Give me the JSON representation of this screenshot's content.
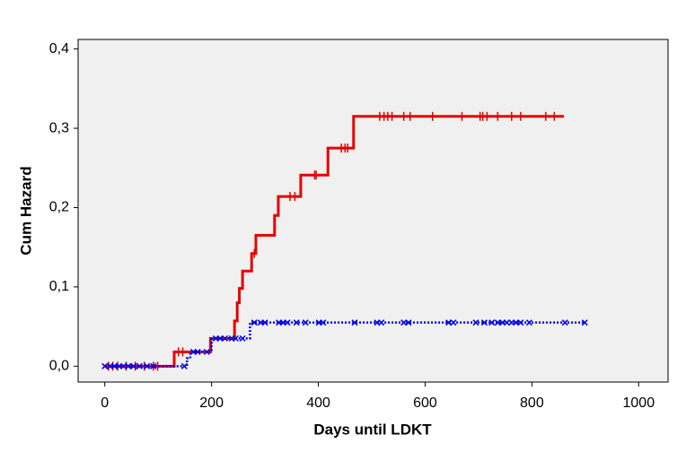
{
  "chart_data": {
    "type": "step",
    "x_label": "Days until LDKT",
    "y_label": "Cum Hazard",
    "xlim": [
      -50,
      1055
    ],
    "ylim": [
      -0.02,
      0.412
    ],
    "xticks": [
      0,
      200,
      400,
      600,
      800,
      1000
    ],
    "yticks": [
      {
        "value": 0,
        "label": "0,0"
      },
      {
        "value": 0.1,
        "label": "0,1"
      },
      {
        "value": 0.2,
        "label": "0,2"
      },
      {
        "value": 0.3,
        "label": "0,3"
      },
      {
        "value": 0.4,
        "label": "0,4"
      }
    ],
    "series": [
      {
        "color": "#e60000",
        "line_style": "solid",
        "censor_marker": "tick",
        "x": [
          0,
          130,
          198,
          243,
          248,
          252,
          258,
          275,
          283,
          318,
          325,
          367,
          418,
          466,
          860
        ],
        "values": [
          0,
          0.018,
          0.035,
          0.057,
          0.08,
          0.098,
          0.12,
          0.142,
          0.165,
          0.19,
          0.214,
          0.241,
          0.275,
          0.315,
          0.315
        ],
        "censor_x": [
          7,
          15,
          24,
          40,
          57,
          74,
          91,
          99,
          138,
          146,
          280,
          347,
          356,
          393,
          396,
          443,
          450,
          455,
          515,
          523,
          530,
          538,
          560,
          572,
          614,
          669,
          703,
          708,
          716,
          736,
          762,
          779,
          826,
          842
        ]
      },
      {
        "color": "#0000ee",
        "line_style": "dotted",
        "censor_marker": "cross",
        "x": [
          0,
          154,
          160,
          200,
          272,
          900
        ],
        "values": [
          0,
          0.01,
          0.018,
          0.035,
          0.055,
          0.055
        ],
        "censor_x": [
          0,
          10,
          18,
          27,
          35,
          44,
          54,
          65,
          79,
          91,
          149,
          166,
          174,
          191,
          208,
          216,
          225,
          238,
          245,
          258,
          280,
          292,
          300,
          326,
          334,
          342,
          359,
          376,
          401,
          409,
          468,
          510,
          518,
          560,
          569,
          644,
          653,
          695,
          711,
          725,
          736,
          745,
          753,
          762,
          770,
          779,
          795,
          862,
          899
        ]
      }
    ]
  }
}
